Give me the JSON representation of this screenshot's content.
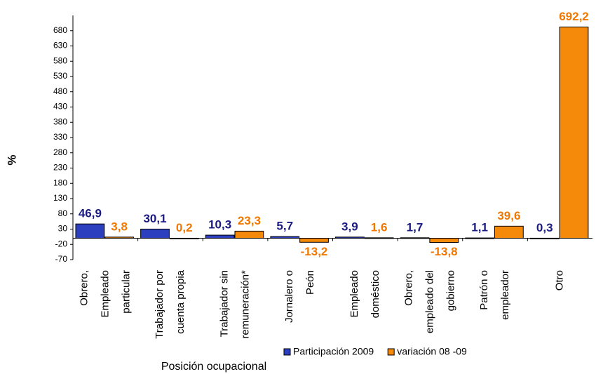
{
  "chart_data": {
    "type": "bar",
    "ylabel": "%",
    "xlabel": "Posición ocupacional",
    "categories": [
      "Obrero,\nEmpleado\nparticular",
      "Trabajador por\ncuenta propia",
      "Trabajador sin\nremuneración*",
      "Jornalero o\nPeón",
      "Empleado\ndoméstico",
      "Obrero,\nempleado del\ngobierno",
      "Patrón o\nempleador",
      "Otro"
    ],
    "series": [
      {
        "name": "Participación 2009",
        "color": "#2b3fbf",
        "label_color": "#1a1a80",
        "values": [
          46.9,
          30.1,
          10.3,
          5.7,
          3.9,
          1.7,
          1.1,
          0.3
        ],
        "value_labels": [
          "46,9",
          "30,1",
          "10,3",
          "5,7",
          "3,9",
          "1,7",
          "1,1",
          "0,3"
        ]
      },
      {
        "name": "variación 08 -09",
        "color": "#f58a0a",
        "label_color": "#f07800",
        "values": [
          3.8,
          0.2,
          23.3,
          -13.2,
          1.6,
          -13.8,
          39.6,
          692.2
        ],
        "value_labels": [
          "3,8",
          "0,2",
          "23,3",
          "-13,2",
          "1,6",
          "-13,8",
          "39,6",
          "692,2"
        ]
      }
    ],
    "ylim": [
      -70,
      730
    ],
    "yticks": [
      -70,
      -20,
      30,
      80,
      130,
      180,
      230,
      280,
      330,
      380,
      430,
      480,
      530,
      580,
      630,
      680
    ],
    "grid": false
  }
}
